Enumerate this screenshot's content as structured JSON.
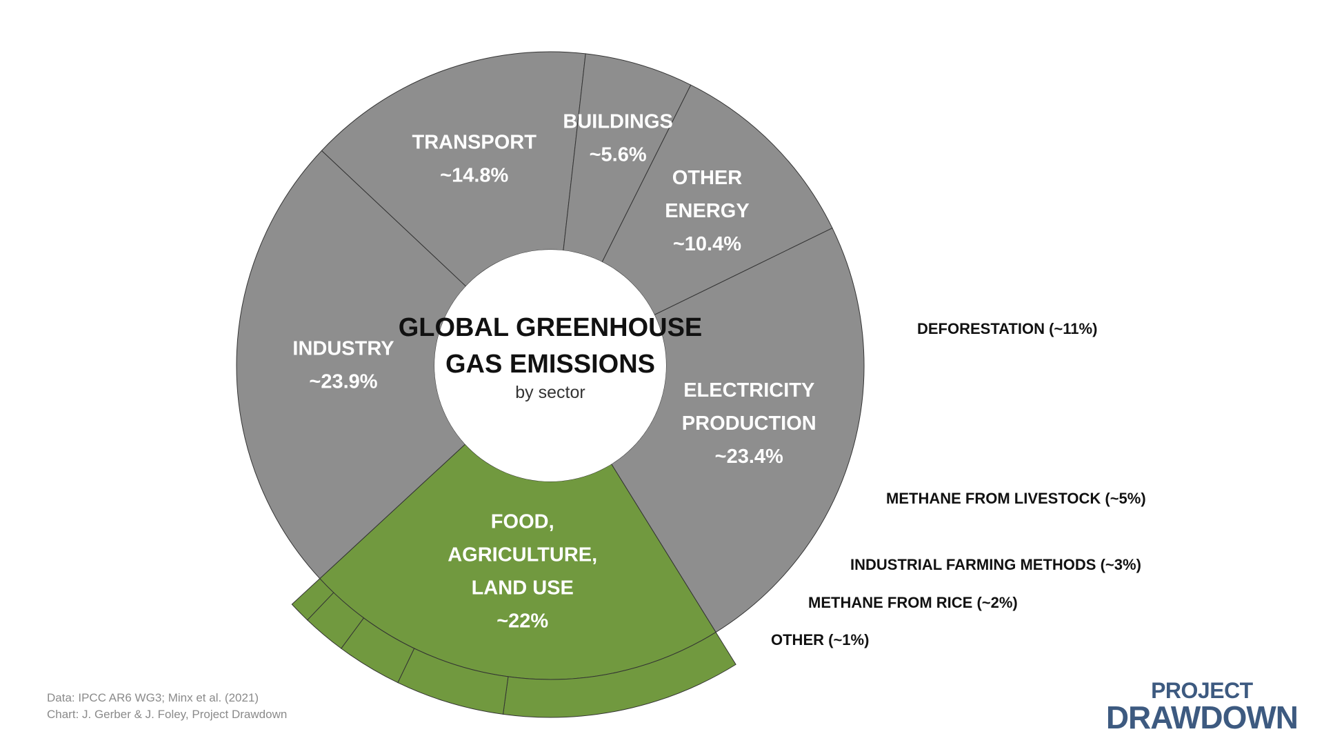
{
  "chart_data": {
    "type": "pie",
    "title": "GLOBAL GREENHOUSE GAS EMISSIONS",
    "subtitle": "by sector",
    "sectors": [
      {
        "name": "ELECTRICITY PRODUCTION",
        "value": 23.4,
        "label_lines": [
          "ELECTRICITY",
          "PRODUCTION",
          "~23.4%"
        ],
        "color": "#8e8e8e"
      },
      {
        "name": "FOOD, AGRICULTURE, LAND USE",
        "value": 22,
        "label_lines": [
          "FOOD,",
          "AGRICULTURE,",
          "LAND USE",
          "~22%"
        ],
        "color": "#71993f"
      },
      {
        "name": "INDUSTRY",
        "value": 23.9,
        "label_lines": [
          "INDUSTRY",
          "~23.9%"
        ],
        "color": "#8e8e8e"
      },
      {
        "name": "TRANSPORT",
        "value": 14.8,
        "label_lines": [
          "TRANSPORT",
          "~14.8%"
        ],
        "color": "#8e8e8e"
      },
      {
        "name": "BUILDINGS",
        "value": 5.6,
        "label_lines": [
          "BUILDINGS",
          "~5.6%"
        ],
        "color": "#8e8e8e"
      },
      {
        "name": "OTHER ENERGY",
        "value": 10.4,
        "label_lines": [
          "OTHER",
          "ENERGY",
          "~10.4%"
        ],
        "color": "#8e8e8e"
      }
    ],
    "food_breakdown": [
      {
        "label": "DEFORESTATION (~11%)",
        "value": 11
      },
      {
        "label": "METHANE FROM LIVESTOCK (~5%)",
        "value": 5
      },
      {
        "label": "INDUSTRIAL FARMING METHODS (~3%)",
        "value": 3
      },
      {
        "label": "METHANE FROM RICE (~2%)",
        "value": 2
      },
      {
        "label": "OTHER (~1%)",
        "value": 1
      }
    ]
  },
  "credits": {
    "line1": "Data: IPCC AR6 WG3; Minx et al. (2021)",
    "line2": "Chart: J. Gerber & J. Foley, Project Drawdown"
  },
  "logo": {
    "top": "PROJECT",
    "bottom": "DRAWDOWN"
  },
  "colors": {
    "gray": "#8e8e8e",
    "green": "#71993f",
    "logo": "#3d5a80"
  }
}
